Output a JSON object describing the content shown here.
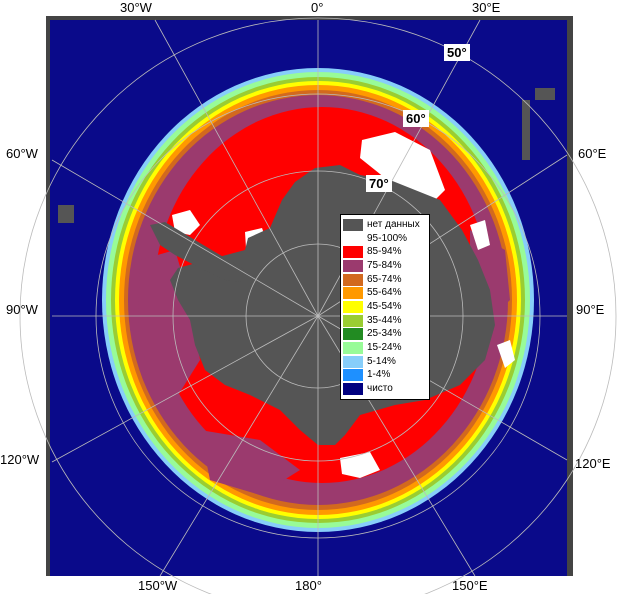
{
  "map": {
    "colors": {
      "ocean": "#0a0a8a",
      "land": "#555555",
      "frame": "#444444",
      "background": "#ffffff",
      "grid": "#bbbbbb",
      "red_ice": "#ff0000",
      "purple_ice": "#9b3a6e",
      "white_ice": "#ffffff"
    },
    "longitude_labels": {
      "top": [
        "30°W",
        "0°",
        "30°E"
      ],
      "left": [
        "60°W",
        "90°W",
        "120°W"
      ],
      "right": [
        "60°E",
        "90°E",
        "120°E"
      ],
      "bottom": [
        "150°W",
        "180°",
        "150°E"
      ]
    },
    "latitude_labels": [
      "50°",
      "60°",
      "70°"
    ]
  },
  "legend": {
    "items": [
      {
        "label": "нет данных",
        "color": "#555555"
      },
      {
        "label": "95-100%",
        "color": "#ffffff"
      },
      {
        "label": "85-94%",
        "color": "#ff0000"
      },
      {
        "label": "75-84%",
        "color": "#9b3a6e"
      },
      {
        "label": "65-74%",
        "color": "#d2691e"
      },
      {
        "label": "55-64%",
        "color": "#ff9900"
      },
      {
        "label": "45-54%",
        "color": "#ffff00"
      },
      {
        "label": "35-44%",
        "color": "#9acd32"
      },
      {
        "label": "25-34%",
        "color": "#228b22"
      },
      {
        "label": "15-24%",
        "color": "#98fb98"
      },
      {
        "label": "5-14%",
        "color": "#87cefa"
      },
      {
        "label": "1-4%",
        "color": "#1e90ff"
      },
      {
        "label": "чисто",
        "color": "#000080"
      }
    ]
  }
}
